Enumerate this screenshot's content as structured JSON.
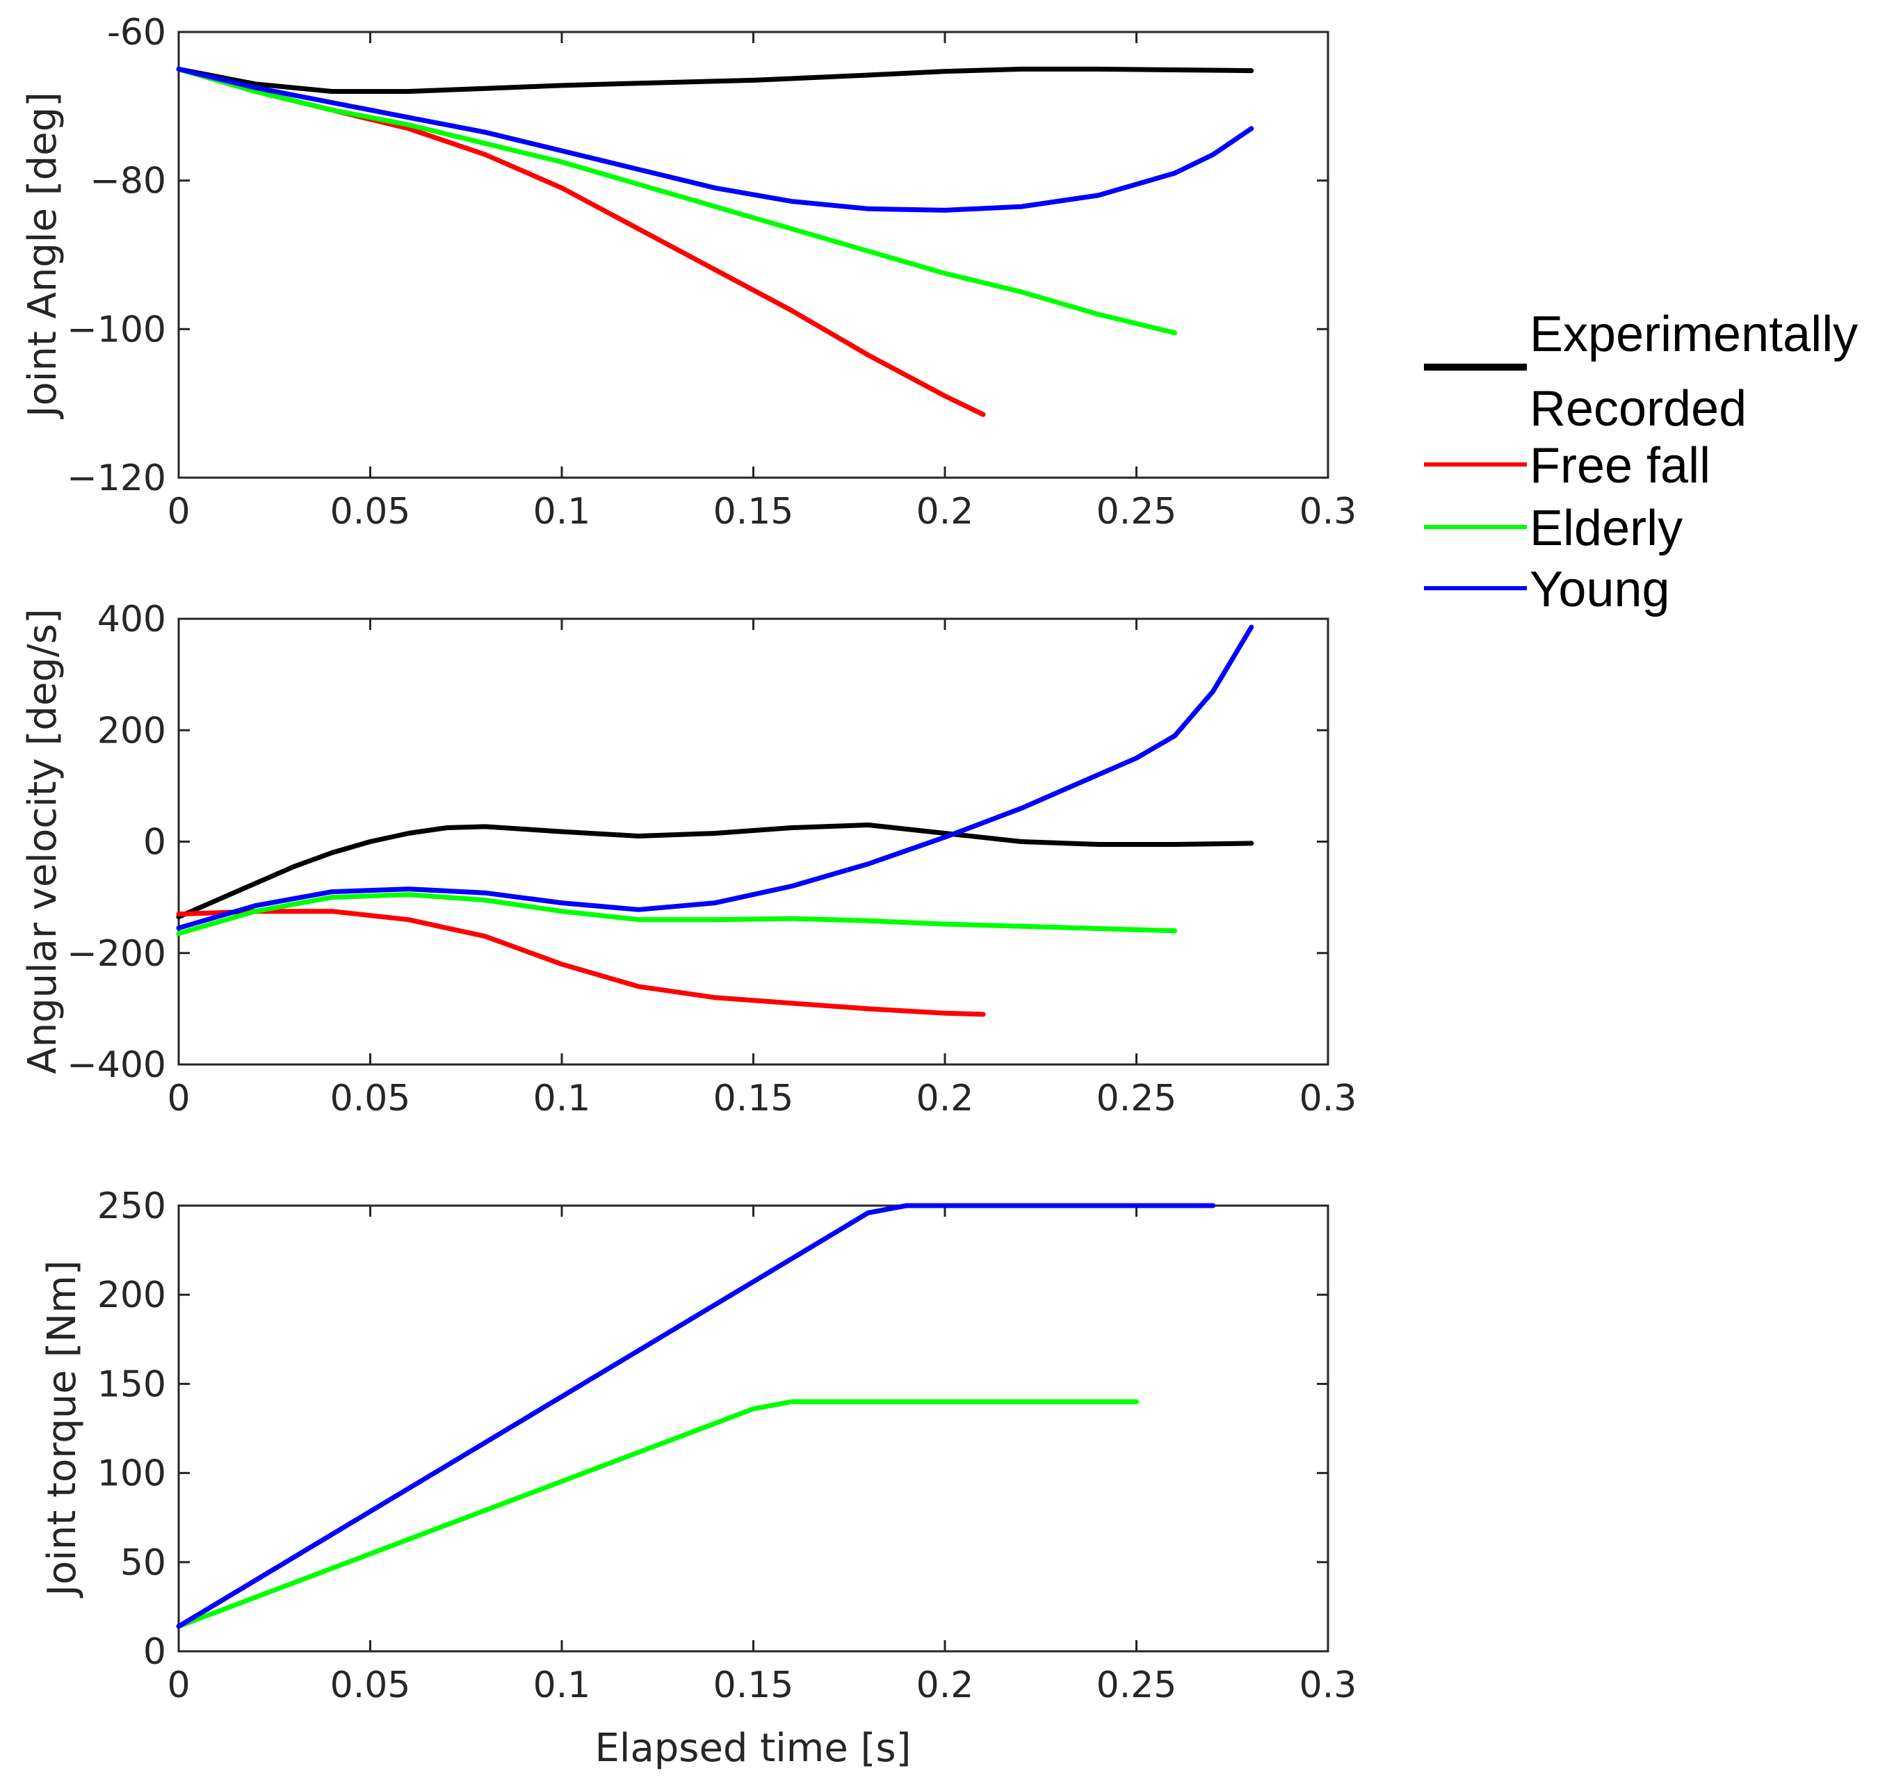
{
  "legend": {
    "entries": [
      {
        "series": "experimental",
        "lines": [
          "Experimentally",
          "Recorded"
        ]
      },
      {
        "series": "free_fall",
        "lines": [
          "Free fall"
        ]
      },
      {
        "series": "elderly",
        "lines": [
          "Elderly"
        ]
      },
      {
        "series": "young",
        "lines": [
          "Young"
        ]
      }
    ]
  },
  "colors": {
    "experimental": "#000000",
    "free_fall": "#ff0000",
    "elderly": "#00ff00",
    "young": "#0000ff"
  },
  "chart_data": [
    {
      "type": "line",
      "panel": "angle",
      "title": "",
      "xlabel": "",
      "ylabel": "Joint Angle [deg]",
      "xlim": [
        0,
        0.3
      ],
      "ylim": [
        -120,
        -60
      ],
      "xticks": [
        0,
        0.05,
        0.1,
        0.15,
        0.2,
        0.25,
        0.3
      ],
      "xtick_labels": [
        "0",
        "0.05",
        "0.1",
        "0.15",
        "0.2",
        "0.25",
        "0.3"
      ],
      "yticks": [
        -60,
        -80,
        -100,
        -120
      ],
      "ytick_labels": [
        "-60",
        "−80",
        "−100",
        "−120"
      ],
      "grid": false,
      "series": [
        {
          "key": "experimental",
          "name": "Experimentally Recorded",
          "x": [
            0,
            0.02,
            0.04,
            0.05,
            0.06,
            0.08,
            0.1,
            0.12,
            0.15,
            0.18,
            0.2,
            0.22,
            0.24,
            0.26,
            0.28
          ],
          "y": [
            -65,
            -67,
            -68,
            -68,
            -68,
            -67.6,
            -67.2,
            -66.9,
            -66.5,
            -65.8,
            -65.3,
            -65.0,
            -65.0,
            -65.1,
            -65.2
          ]
        },
        {
          "key": "free_fall",
          "name": "Free fall",
          "x": [
            0,
            0.02,
            0.04,
            0.06,
            0.08,
            0.1,
            0.12,
            0.14,
            0.16,
            0.18,
            0.2,
            0.21
          ],
          "y": [
            -65,
            -68,
            -70.5,
            -73,
            -76.5,
            -81,
            -86.5,
            -92,
            -97.5,
            -103.5,
            -109,
            -111.5
          ]
        },
        {
          "key": "elderly",
          "name": "Elderly",
          "x": [
            0,
            0.02,
            0.04,
            0.06,
            0.08,
            0.1,
            0.12,
            0.14,
            0.16,
            0.18,
            0.2,
            0.22,
            0.24,
            0.26
          ],
          "y": [
            -65,
            -68,
            -70.5,
            -72.5,
            -75,
            -77.5,
            -80.5,
            -83.5,
            -86.5,
            -89.5,
            -92.5,
            -95,
            -98,
            -100.5
          ]
        },
        {
          "key": "young",
          "name": "Young",
          "x": [
            0,
            0.02,
            0.04,
            0.06,
            0.08,
            0.1,
            0.12,
            0.14,
            0.16,
            0.18,
            0.2,
            0.22,
            0.24,
            0.25,
            0.26,
            0.27,
            0.28
          ],
          "y": [
            -65,
            -67.5,
            -69.5,
            -71.5,
            -73.5,
            -76,
            -78.5,
            -81,
            -82.8,
            -83.8,
            -84,
            -83.5,
            -82,
            -80.5,
            -79,
            -76.5,
            -73
          ]
        }
      ]
    },
    {
      "type": "line",
      "panel": "velocity",
      "title": "",
      "xlabel": "",
      "ylabel": "Angular velocity [deg/s]",
      "xlim": [
        0,
        0.3
      ],
      "ylim": [
        -400,
        400
      ],
      "xticks": [
        0,
        0.05,
        0.1,
        0.15,
        0.2,
        0.25,
        0.3
      ],
      "xtick_labels": [
        "0",
        "0.05",
        "0.1",
        "0.15",
        "0.2",
        "0.25",
        "0.3"
      ],
      "yticks": [
        400,
        200,
        0,
        -200,
        -400
      ],
      "ytick_labels": [
        "400",
        "200",
        "0",
        "−200",
        "−400"
      ],
      "grid": false,
      "series": [
        {
          "key": "experimental",
          "name": "Experimentally Recorded",
          "x": [
            0,
            0.02,
            0.03,
            0.04,
            0.05,
            0.06,
            0.07,
            0.08,
            0.1,
            0.12,
            0.14,
            0.16,
            0.18,
            0.2,
            0.22,
            0.24,
            0.26,
            0.28
          ],
          "y": [
            -135,
            -75,
            -45,
            -20,
            0,
            15,
            25,
            27,
            18,
            10,
            15,
            25,
            30,
            15,
            0,
            -5,
            -5,
            -3
          ]
        },
        {
          "key": "free_fall",
          "name": "Free fall",
          "x": [
            0,
            0.02,
            0.04,
            0.06,
            0.08,
            0.1,
            0.12,
            0.14,
            0.16,
            0.18,
            0.2,
            0.21
          ],
          "y": [
            -130,
            -125,
            -125,
            -140,
            -170,
            -220,
            -260,
            -280,
            -290,
            -300,
            -308,
            -310
          ]
        },
        {
          "key": "elderly",
          "name": "Elderly",
          "x": [
            0,
            0.02,
            0.04,
            0.06,
            0.08,
            0.1,
            0.12,
            0.14,
            0.16,
            0.18,
            0.2,
            0.22,
            0.24,
            0.26
          ],
          "y": [
            -165,
            -125,
            -100,
            -95,
            -105,
            -125,
            -140,
            -140,
            -138,
            -142,
            -148,
            -152,
            -156,
            -160
          ]
        },
        {
          "key": "young",
          "name": "Young",
          "x": [
            0,
            0.02,
            0.04,
            0.06,
            0.08,
            0.1,
            0.12,
            0.14,
            0.16,
            0.18,
            0.2,
            0.22,
            0.24,
            0.25,
            0.26,
            0.27,
            0.28
          ],
          "y": [
            -155,
            -115,
            -90,
            -85,
            -92,
            -110,
            -122,
            -110,
            -80,
            -40,
            8,
            60,
            120,
            150,
            190,
            270,
            385
          ]
        }
      ]
    },
    {
      "type": "line",
      "panel": "torque",
      "title": "",
      "xlabel": "Elapsed time [s]",
      "ylabel": "Joint torque [Nm]",
      "xlim": [
        0,
        0.3
      ],
      "ylim": [
        0,
        250
      ],
      "xticks": [
        0,
        0.05,
        0.1,
        0.15,
        0.2,
        0.25,
        0.3
      ],
      "xtick_labels": [
        "0",
        "0.05",
        "0.1",
        "0.15",
        "0.2",
        "0.25",
        "0.3"
      ],
      "yticks": [
        250,
        200,
        150,
        100,
        50,
        0
      ],
      "ytick_labels": [
        "250",
        "200",
        "150",
        "100",
        "50",
        "0"
      ],
      "grid": false,
      "series": [
        {
          "key": "elderly",
          "name": "Elderly",
          "x": [
            0,
            0.15,
            0.16,
            0.25
          ],
          "y": [
            14,
            136,
            140,
            140
          ]
        },
        {
          "key": "young",
          "name": "Young",
          "x": [
            0,
            0.18,
            0.19,
            0.27
          ],
          "y": [
            14,
            246,
            250,
            250
          ]
        }
      ]
    }
  ]
}
